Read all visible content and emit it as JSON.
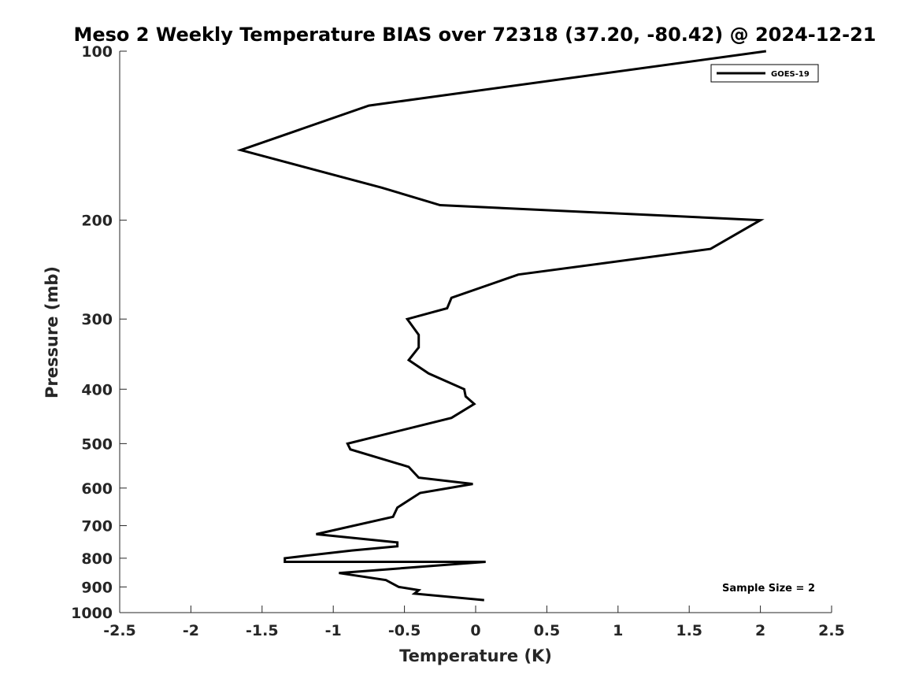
{
  "chart_data": {
    "type": "line",
    "title": "Meso 2 Weekly Temperature BIAS over 72318 (37.20, -80.42) @ 2024-12-21",
    "xlabel": "Temperature (K)",
    "ylabel": "Pressure (mb)",
    "xlim": [
      -2.5,
      2.5
    ],
    "ylim": [
      100,
      1000
    ],
    "y_scale": "log",
    "y_reversed": true,
    "x_ticks": [
      -2.5,
      -2,
      -1.5,
      -1,
      -0.5,
      0,
      0.5,
      1,
      1.5,
      2,
      2.5
    ],
    "x_tick_labels": [
      "-2.5",
      "-2",
      "-1.5",
      "-1",
      "-0.5",
      "0",
      "0.5",
      "1",
      "1.5",
      "2",
      "2.5"
    ],
    "y_ticks": [
      100,
      200,
      300,
      400,
      500,
      600,
      700,
      800,
      900,
      1000
    ],
    "y_tick_labels": [
      "100",
      "200",
      "300",
      "400",
      "500",
      "600",
      "700",
      "800",
      "900",
      "1000"
    ],
    "grid": false,
    "legend_position": "top-right",
    "line_color": "#000000",
    "series": [
      {
        "name": "GOES-19",
        "x": [
          2.04,
          -0.75,
          -1.65,
          -0.66,
          -0.25,
          2.0,
          1.65,
          0.3,
          -0.17,
          -0.2,
          -0.48,
          -0.4,
          -0.4,
          -0.47,
          -0.33,
          -0.08,
          -0.07,
          -0.01,
          -0.17,
          -0.9,
          -0.88,
          -0.47,
          -0.4,
          -0.02,
          -0.39,
          -0.55,
          -0.58,
          -1.12,
          -0.55,
          -0.55,
          -0.87,
          -1.34,
          -1.34,
          0.07,
          -0.96,
          -0.63,
          -0.54,
          -0.4,
          -0.43,
          0.06
        ],
        "y": [
          100,
          125,
          150,
          175,
          188,
          200,
          225,
          250,
          275,
          287,
          300,
          320,
          337,
          355,
          375,
          400,
          412,
          425,
          450,
          500,
          512,
          550,
          575,
          590,
          612,
          650,
          675,
          725,
          750,
          762,
          775,
          800,
          812,
          812,
          850,
          875,
          900,
          912,
          925,
          950
        ]
      }
    ],
    "annotation": "Sample Size = 2"
  }
}
